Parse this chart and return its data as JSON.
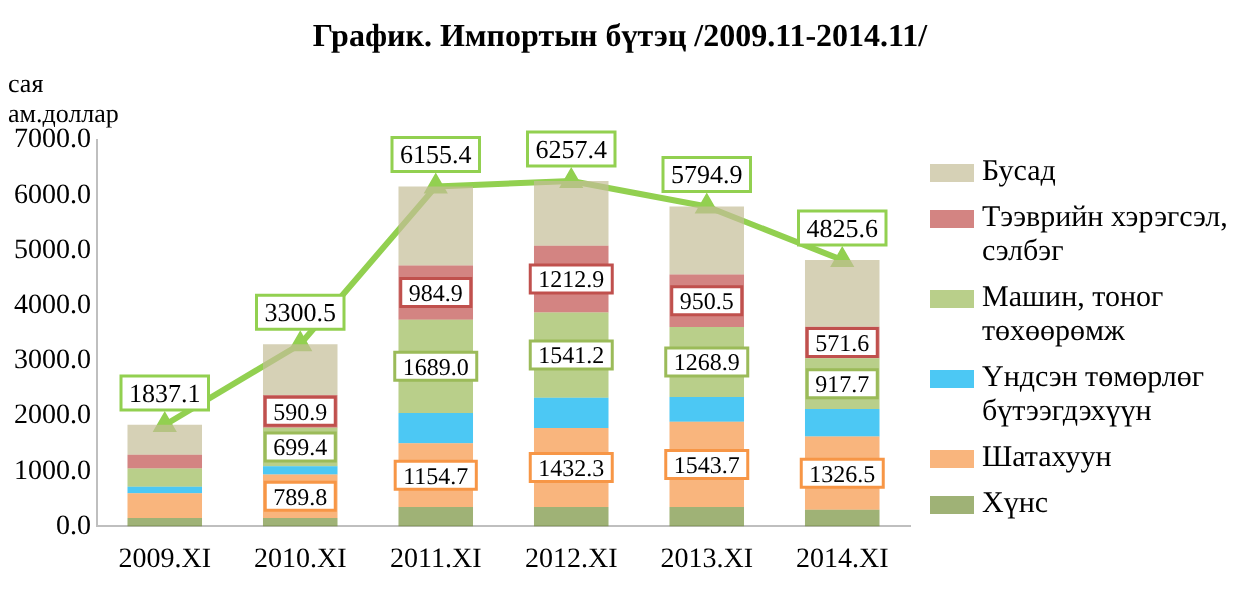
{
  "chart_data": {
    "type": "bar",
    "title": "График. Импортын бүтэц /2009.11-2014.11/",
    "ylabel": "сая ам.доллар",
    "stacked": true,
    "categories": [
      "2009.XI",
      "2010.XI",
      "2011.XI",
      "2012.XI",
      "2013.XI",
      "2014.XI"
    ],
    "series": [
      {
        "name": "Хүнс",
        "color": "#76923c",
        "values": [
          150,
          150,
          350,
          350,
          350,
          300
        ]
      },
      {
        "name": "Шатахуун",
        "color": "#f79646",
        "values": [
          450,
          789.8,
          1154.7,
          1432.3,
          1543.7,
          1326.5
        ],
        "value_labels": [
          null,
          "789.8",
          "1154.7",
          "1432.3",
          "1543.7",
          "1326.5"
        ]
      },
      {
        "name": "Үндсэн төмөрлөг бүтээгдэхүүн",
        "color": "#00b0f0",
        "values": [
          120,
          150,
          550,
          550,
          450,
          500
        ]
      },
      {
        "name": "Машин, тоног төхөөрөмж",
        "color": "#9bbb59",
        "values": [
          330,
          699.4,
          1689.0,
          1541.2,
          1268.9,
          917.7
        ],
        "value_labels": [
          null,
          "699.4",
          "1689.0",
          "1541.2",
          "1268.9",
          "917.7"
        ]
      },
      {
        "name": "Тээврийн хэрэгсэл, сэлбэг",
        "color": "#c0504d",
        "values": [
          250,
          590.9,
          984.9,
          1212.9,
          950.5,
          571.6
        ],
        "value_labels": [
          null,
          "590.9",
          "984.9",
          "1212.9",
          "950.5",
          "571.6"
        ]
      },
      {
        "name": "Бусад",
        "color": "#c4bd97",
        "values": [
          540,
          920,
          1430,
          1170,
          1230,
          1210
        ]
      },
      {
        "type": "line",
        "color": "#92d050",
        "marker": "triangle",
        "values": [
          1837.1,
          3300.5,
          6155.4,
          6257.4,
          5794.9,
          4825.6
        ],
        "value_labels": [
          "1837.1",
          "3300.5",
          "6155.4",
          "6257.4",
          "5794.9",
          "4825.6"
        ]
      }
    ],
    "ylim": [
      0,
      7000
    ],
    "yticks": [
      {
        "value": 0,
        "label": "0.0"
      },
      {
        "value": 1000,
        "label": "1000.0"
      },
      {
        "value": 2000,
        "label": "2000.0"
      },
      {
        "value": 3000,
        "label": "3000.0"
      },
      {
        "value": 4000,
        "label": "4000.0"
      },
      {
        "value": 5000,
        "label": "5000.0"
      },
      {
        "value": 6000,
        "label": "6000.0"
      },
      {
        "value": 7000,
        "label": "7000.0"
      }
    ],
    "grid": false,
    "legend": "right"
  }
}
